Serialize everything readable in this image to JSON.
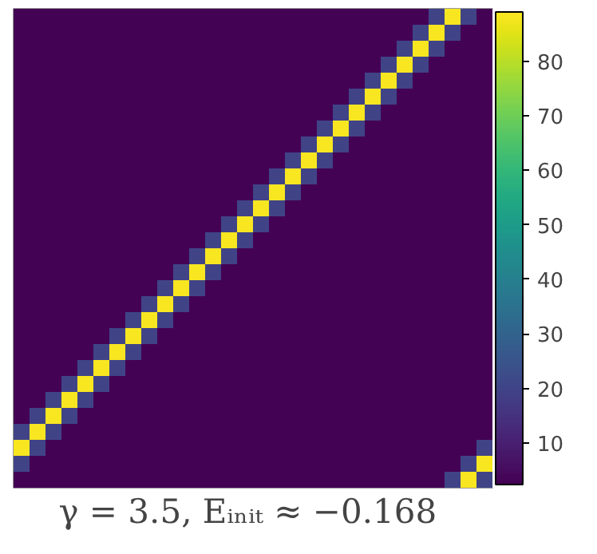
{
  "chart_data": {
    "type": "heatmap",
    "title": "γ = 3.5,  Eᵢₙᵢₜ ≈ −0.168",
    "categories": [
      null,
      null,
      null,
      null,
      null,
      null,
      null,
      null,
      null,
      null,
      null,
      null,
      null,
      null,
      null,
      null,
      null,
      null,
      null,
      null,
      null,
      null,
      null,
      null,
      null,
      null,
      null,
      null,
      null,
      null
    ],
    "y_categories": [
      null,
      null,
      null,
      null,
      null,
      null,
      null,
      null,
      null,
      null,
      null,
      null,
      null,
      null,
      null,
      null,
      null,
      null,
      null,
      null,
      null,
      null,
      null,
      null,
      null,
      null,
      null,
      null,
      null,
      null
    ],
    "cells": [
      [
        3,
        3,
        3,
        3,
        3,
        3,
        3,
        3,
        3,
        3,
        3,
        3,
        3,
        3,
        3,
        3,
        3,
        3,
        3,
        3,
        3,
        3,
        3,
        3,
        3,
        3,
        20,
        88,
        20,
        3
      ],
      [
        3,
        3,
        3,
        3,
        3,
        3,
        3,
        3,
        3,
        3,
        3,
        3,
        3,
        3,
        3,
        3,
        3,
        3,
        3,
        3,
        3,
        3,
        3,
        3,
        3,
        20,
        88,
        20,
        3,
        3
      ],
      [
        3,
        3,
        3,
        3,
        3,
        3,
        3,
        3,
        3,
        3,
        3,
        3,
        3,
        3,
        3,
        3,
        3,
        3,
        3,
        3,
        3,
        3,
        3,
        3,
        20,
        88,
        20,
        3,
        3,
        3
      ],
      [
        3,
        3,
        3,
        3,
        3,
        3,
        3,
        3,
        3,
        3,
        3,
        3,
        3,
        3,
        3,
        3,
        3,
        3,
        3,
        3,
        3,
        3,
        3,
        20,
        88,
        20,
        3,
        3,
        3,
        3
      ],
      [
        3,
        3,
        3,
        3,
        3,
        3,
        3,
        3,
        3,
        3,
        3,
        3,
        3,
        3,
        3,
        3,
        3,
        3,
        3,
        3,
        3,
        3,
        20,
        88,
        20,
        3,
        3,
        3,
        3,
        3
      ],
      [
        3,
        3,
        3,
        3,
        3,
        3,
        3,
        3,
        3,
        3,
        3,
        3,
        3,
        3,
        3,
        3,
        3,
        3,
        3,
        3,
        3,
        20,
        88,
        20,
        3,
        3,
        3,
        3,
        3,
        3
      ],
      [
        3,
        3,
        3,
        3,
        3,
        3,
        3,
        3,
        3,
        3,
        3,
        3,
        3,
        3,
        3,
        3,
        3,
        3,
        3,
        3,
        20,
        88,
        20,
        3,
        3,
        3,
        3,
        3,
        3,
        3
      ],
      [
        3,
        3,
        3,
        3,
        3,
        3,
        3,
        3,
        3,
        3,
        3,
        3,
        3,
        3,
        3,
        3,
        3,
        3,
        3,
        20,
        88,
        20,
        3,
        3,
        3,
        3,
        3,
        3,
        3,
        3
      ],
      [
        3,
        3,
        3,
        3,
        3,
        3,
        3,
        3,
        3,
        3,
        3,
        3,
        3,
        3,
        3,
        3,
        3,
        3,
        20,
        88,
        20,
        3,
        3,
        3,
        3,
        3,
        3,
        3,
        3,
        3
      ],
      [
        3,
        3,
        3,
        3,
        3,
        3,
        3,
        3,
        3,
        3,
        3,
        3,
        3,
        3,
        3,
        3,
        3,
        20,
        88,
        20,
        3,
        3,
        3,
        3,
        3,
        3,
        3,
        3,
        3,
        3
      ],
      [
        3,
        3,
        3,
        3,
        3,
        3,
        3,
        3,
        3,
        3,
        3,
        3,
        3,
        3,
        3,
        3,
        20,
        88,
        20,
        3,
        3,
        3,
        3,
        3,
        3,
        3,
        3,
        3,
        3,
        3
      ],
      [
        3,
        3,
        3,
        3,
        3,
        3,
        3,
        3,
        3,
        3,
        3,
        3,
        3,
        3,
        3,
        20,
        88,
        20,
        3,
        3,
        3,
        3,
        3,
        3,
        3,
        3,
        3,
        3,
        3,
        3
      ],
      [
        3,
        3,
        3,
        3,
        3,
        3,
        3,
        3,
        3,
        3,
        3,
        3,
        3,
        3,
        20,
        88,
        20,
        3,
        3,
        3,
        3,
        3,
        3,
        3,
        3,
        3,
        3,
        3,
        3,
        3
      ],
      [
        3,
        3,
        3,
        3,
        3,
        3,
        3,
        3,
        3,
        3,
        3,
        3,
        3,
        20,
        88,
        20,
        3,
        3,
        3,
        3,
        3,
        3,
        3,
        3,
        3,
        3,
        3,
        3,
        3,
        3
      ],
      [
        3,
        3,
        3,
        3,
        3,
        3,
        3,
        3,
        3,
        3,
        3,
        3,
        20,
        88,
        20,
        3,
        3,
        3,
        3,
        3,
        3,
        3,
        3,
        3,
        3,
        3,
        3,
        3,
        3,
        3
      ],
      [
        3,
        3,
        3,
        3,
        3,
        3,
        3,
        3,
        3,
        3,
        3,
        20,
        88,
        20,
        3,
        3,
        3,
        3,
        3,
        3,
        3,
        3,
        3,
        3,
        3,
        3,
        3,
        3,
        3,
        3
      ],
      [
        3,
        3,
        3,
        3,
        3,
        3,
        3,
        3,
        3,
        3,
        20,
        88,
        20,
        3,
        3,
        3,
        3,
        3,
        3,
        3,
        3,
        3,
        3,
        3,
        3,
        3,
        3,
        3,
        3,
        3
      ],
      [
        3,
        3,
        3,
        3,
        3,
        3,
        3,
        3,
        3,
        20,
        88,
        20,
        3,
        3,
        3,
        3,
        3,
        3,
        3,
        3,
        3,
        3,
        3,
        3,
        3,
        3,
        3,
        3,
        3,
        3
      ],
      [
        3,
        3,
        3,
        3,
        3,
        3,
        3,
        3,
        20,
        88,
        20,
        3,
        3,
        3,
        3,
        3,
        3,
        3,
        3,
        3,
        3,
        3,
        3,
        3,
        3,
        3,
        3,
        3,
        3,
        3
      ],
      [
        3,
        3,
        3,
        3,
        3,
        3,
        3,
        20,
        88,
        20,
        3,
        3,
        3,
        3,
        3,
        3,
        3,
        3,
        3,
        3,
        3,
        3,
        3,
        3,
        3,
        3,
        3,
        3,
        3,
        3
      ],
      [
        3,
        3,
        3,
        3,
        3,
        3,
        20,
        88,
        20,
        3,
        3,
        3,
        3,
        3,
        3,
        3,
        3,
        3,
        3,
        3,
        3,
        3,
        3,
        3,
        3,
        3,
        3,
        3,
        3,
        3
      ],
      [
        3,
        3,
        3,
        3,
        3,
        20,
        88,
        20,
        3,
        3,
        3,
        3,
        3,
        3,
        3,
        3,
        3,
        3,
        3,
        3,
        3,
        3,
        3,
        3,
        3,
        3,
        3,
        3,
        3,
        3
      ],
      [
        3,
        3,
        3,
        3,
        20,
        88,
        20,
        3,
        3,
        3,
        3,
        3,
        3,
        3,
        3,
        3,
        3,
        3,
        3,
        3,
        3,
        3,
        3,
        3,
        3,
        3,
        3,
        3,
        3,
        3
      ],
      [
        3,
        3,
        3,
        20,
        88,
        20,
        3,
        3,
        3,
        3,
        3,
        3,
        3,
        3,
        3,
        3,
        3,
        3,
        3,
        3,
        3,
        3,
        3,
        3,
        3,
        3,
        3,
        3,
        3,
        3
      ],
      [
        3,
        3,
        20,
        88,
        20,
        3,
        3,
        3,
        3,
        3,
        3,
        3,
        3,
        3,
        3,
        3,
        3,
        3,
        3,
        3,
        3,
        3,
        3,
        3,
        3,
        3,
        3,
        3,
        3,
        3
      ],
      [
        3,
        20,
        88,
        20,
        3,
        3,
        3,
        3,
        3,
        3,
        3,
        3,
        3,
        3,
        3,
        3,
        3,
        3,
        3,
        3,
        3,
        3,
        3,
        3,
        3,
        3,
        3,
        3,
        3,
        3
      ],
      [
        20,
        88,
        20,
        3,
        3,
        3,
        3,
        3,
        3,
        3,
        3,
        3,
        3,
        3,
        3,
        3,
        3,
        3,
        3,
        3,
        3,
        3,
        3,
        3,
        3,
        3,
        3,
        3,
        3,
        3
      ],
      [
        88,
        20,
        3,
        3,
        3,
        3,
        3,
        3,
        3,
        3,
        3,
        3,
        3,
        3,
        3,
        3,
        3,
        3,
        3,
        3,
        3,
        3,
        3,
        3,
        3,
        3,
        3,
        3,
        3,
        20
      ],
      [
        20,
        3,
        3,
        3,
        3,
        3,
        3,
        3,
        3,
        3,
        3,
        3,
        3,
        3,
        3,
        3,
        3,
        3,
        3,
        3,
        3,
        3,
        3,
        3,
        3,
        3,
        3,
        3,
        20,
        88
      ],
      [
        3,
        3,
        3,
        3,
        3,
        3,
        3,
        3,
        3,
        3,
        3,
        3,
        3,
        3,
        3,
        3,
        3,
        3,
        3,
        3,
        3,
        3,
        3,
        3,
        3,
        3,
        3,
        20,
        88,
        20
      ]
    ],
    "clim": [
      2.4,
      89
    ],
    "cticks": [
      10,
      20,
      30,
      40,
      50,
      60,
      70,
      80
    ],
    "tick_labels": false
  }
}
